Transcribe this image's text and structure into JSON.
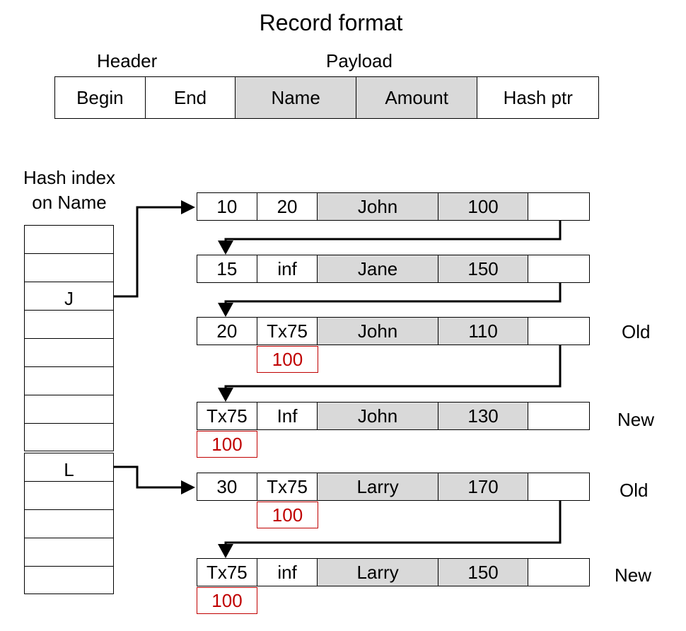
{
  "title": "Record format",
  "format": {
    "header_label": "Header",
    "payload_label": "Payload",
    "fields": [
      "Begin",
      "End",
      "Name",
      "Amount",
      "Hash ptr"
    ]
  },
  "index": {
    "label_line1": "Hash index",
    "label_line2": "on Name",
    "slots": [
      "",
      "",
      "J",
      "",
      "",
      "",
      "",
      "",
      "L",
      "",
      "",
      "",
      ""
    ]
  },
  "records": [
    {
      "begin": "10",
      "end": "20",
      "name": "John",
      "amount": "100",
      "ptr": "",
      "begin_sub": "",
      "end_sub": "",
      "tag": ""
    },
    {
      "begin": "15",
      "end": "inf",
      "name": "Jane",
      "amount": "150",
      "ptr": "",
      "begin_sub": "",
      "end_sub": "",
      "tag": ""
    },
    {
      "begin": "20",
      "end": "Tx75",
      "name": "John",
      "amount": "110",
      "ptr": "",
      "begin_sub": "",
      "end_sub": "100",
      "tag": "Old"
    },
    {
      "begin": "Tx75",
      "end": "Inf",
      "name": "John",
      "amount": "130",
      "ptr": "",
      "begin_sub": "100",
      "end_sub": "",
      "tag": "New"
    },
    {
      "begin": "30",
      "end": "Tx75",
      "name": "Larry",
      "amount": "170",
      "ptr": "",
      "begin_sub": "",
      "end_sub": "100",
      "tag": "Old"
    },
    {
      "begin": "Tx75",
      "end": "inf",
      "name": "Larry",
      "amount": "150",
      "ptr": "",
      "begin_sub": "100",
      "end_sub": "",
      "tag": "New"
    }
  ],
  "colors": {
    "shade": "#d9d9d9",
    "lock": "#c00000"
  }
}
